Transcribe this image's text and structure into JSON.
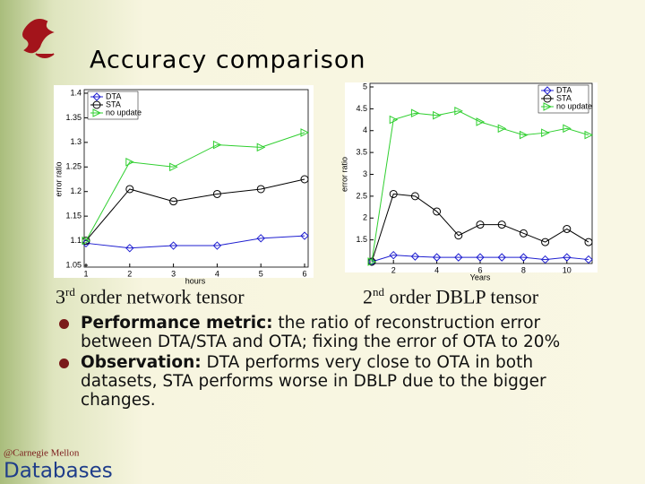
{
  "title": "Accuracy comparison",
  "captions": [
    {
      "base": "3",
      "sup": "rd",
      "rest": " order network tensor"
    },
    {
      "base": "2",
      "sup": "nd",
      "rest": " order DBLP tensor"
    }
  ],
  "bullets": [
    {
      "label": "Performance metric:",
      "text": " the ratio of reconstruction error between DTA/STA and OTA; fixing the error of OTA to 20%"
    },
    {
      "label": "Observation:",
      "text": " DTA performs very close to OTA in both datasets, STA performs worse in DBLP due to the bigger changes."
    }
  ],
  "footer": {
    "org": "@Carnegie Mellon",
    "group": "Databases"
  },
  "chart_data": [
    {
      "type": "line",
      "xlabel": "hours",
      "ylabel": "error ratio",
      "x": [
        1,
        2,
        3,
        4,
        5,
        6
      ],
      "xlim": [
        1,
        6
      ],
      "xticks": [
        1,
        2,
        3,
        4,
        5,
        6
      ],
      "ylim": [
        1.05,
        1.4
      ],
      "yticks": [
        1.05,
        1.1,
        1.15,
        1.2,
        1.25,
        1.3,
        1.35,
        1.4
      ],
      "legend": "upper left",
      "series": [
        {
          "name": "DTA",
          "color": "#1f1fd0",
          "marker": "diamond",
          "values": [
            1.095,
            1.085,
            1.09,
            1.09,
            1.105,
            1.11
          ]
        },
        {
          "name": "STA",
          "color": "#000000",
          "marker": "circle",
          "values": [
            1.1,
            1.205,
            1.18,
            1.195,
            1.205,
            1.225
          ]
        },
        {
          "name": "no update",
          "color": "#2fcf2f",
          "marker": "triangle",
          "values": [
            1.1,
            1.26,
            1.25,
            1.295,
            1.29,
            1.32
          ]
        }
      ]
    },
    {
      "type": "line",
      "xlabel": "Years",
      "ylabel": "error ratio",
      "x": [
        1,
        2,
        3,
        4,
        5,
        6,
        7,
        8,
        9,
        10,
        11
      ],
      "xlim": [
        1,
        11
      ],
      "xticks": [
        2,
        4,
        6,
        8,
        10
      ],
      "ylim": [
        1,
        5
      ],
      "yticks": [
        1.5,
        2,
        2.5,
        3,
        3.5,
        4,
        4.5,
        5
      ],
      "legend": "upper right",
      "series": [
        {
          "name": "DTA",
          "color": "#1f1fd0",
          "marker": "diamond",
          "values": [
            1,
            1.15,
            1.12,
            1.1,
            1.1,
            1.1,
            1.1,
            1.1,
            1.05,
            1.1,
            1.05
          ]
        },
        {
          "name": "STA",
          "color": "#000000",
          "marker": "circle",
          "values": [
            1,
            2.55,
            2.5,
            2.15,
            1.6,
            1.85,
            1.85,
            1.65,
            1.45,
            1.75,
            1.45
          ]
        },
        {
          "name": "no update",
          "color": "#2fcf2f",
          "marker": "triangle",
          "values": [
            1,
            4.25,
            4.4,
            4.35,
            4.45,
            4.2,
            4.05,
            3.9,
            3.95,
            4.05,
            3.9
          ]
        }
      ]
    }
  ]
}
